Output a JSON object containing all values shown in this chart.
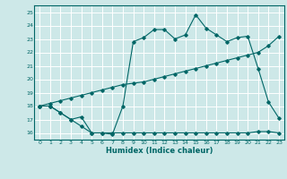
{
  "xlabel": "Humidex (Indice chaleur)",
  "xlim": [
    -0.5,
    23.5
  ],
  "ylim": [
    15.5,
    25.5
  ],
  "xticks": [
    0,
    1,
    2,
    3,
    4,
    5,
    6,
    7,
    8,
    9,
    10,
    11,
    12,
    13,
    14,
    15,
    16,
    17,
    18,
    19,
    20,
    21,
    22,
    23
  ],
  "yticks": [
    16,
    17,
    18,
    19,
    20,
    21,
    22,
    23,
    24,
    25
  ],
  "bg_color": "#cde8e8",
  "grid_color": "#b0d8d8",
  "line_color": "#006666",
  "line1_x": [
    0,
    1,
    2,
    3,
    4,
    5,
    6,
    7,
    8,
    9,
    10,
    11,
    12,
    13,
    14,
    15,
    16,
    17,
    18,
    19,
    20,
    21,
    22,
    23
  ],
  "line1_y": [
    18,
    18,
    17.5,
    17,
    16.5,
    16,
    16,
    15.9,
    18.0,
    22.8,
    23.1,
    23.7,
    23.7,
    23.0,
    23.3,
    24.8,
    23.8,
    23.3,
    22.8,
    23.1,
    23.2,
    20.8,
    18.3,
    17.1
  ],
  "line2_x": [
    0,
    1,
    2,
    3,
    4,
    5,
    6,
    7,
    8,
    9,
    10,
    11,
    12,
    13,
    14,
    15,
    16,
    17,
    18,
    19,
    20,
    21,
    22,
    23
  ],
  "line2_y": [
    18.0,
    18.2,
    18.4,
    18.6,
    18.8,
    19.0,
    19.2,
    19.4,
    19.6,
    19.7,
    19.8,
    20.0,
    20.2,
    20.4,
    20.6,
    20.8,
    21.0,
    21.2,
    21.4,
    21.6,
    21.8,
    22.0,
    22.5,
    23.2
  ],
  "line3_x": [
    0,
    1,
    2,
    3,
    4,
    5,
    6,
    7,
    8,
    9,
    10,
    11,
    12,
    13,
    14,
    15,
    16,
    17,
    18,
    19,
    20,
    21,
    22,
    23
  ],
  "line3_y": [
    18.0,
    18.0,
    17.5,
    17.0,
    17.2,
    16.0,
    16.0,
    16.0,
    16.0,
    16.0,
    16.0,
    16.0,
    16.0,
    16.0,
    16.0,
    16.0,
    16.0,
    16.0,
    16.0,
    16.0,
    16.0,
    16.1,
    16.1,
    16.0
  ]
}
